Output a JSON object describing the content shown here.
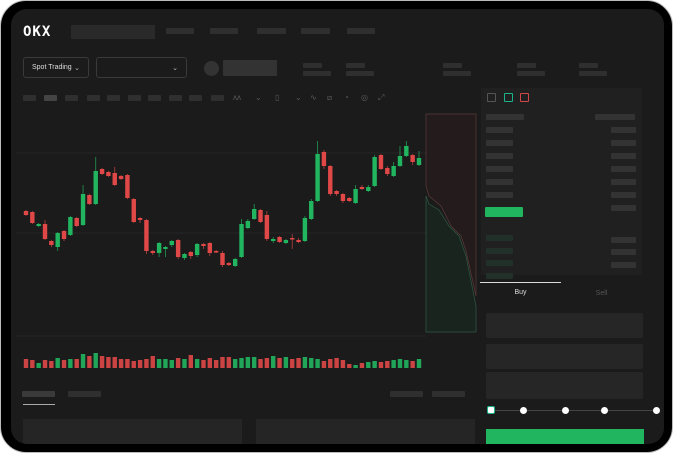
{
  "header": {
    "logo": "OKX"
  },
  "market": {
    "mode_label": "Spot Trading",
    "pair_select_value": ""
  },
  "colors": {
    "up": "#22b560",
    "down": "#e04848",
    "background": "#1b1b1b",
    "accent": "#22b560"
  },
  "order_form": {
    "tabs": [
      {
        "label": "Buy",
        "active": true
      },
      {
        "label": "Sell",
        "active": false
      }
    ],
    "slider_percent": 0
  },
  "chart_data": {
    "type": "candlestick",
    "title": "",
    "xlabel": "",
    "ylabel": "",
    "grid": true,
    "candles": [
      [
        98,
        94,
        99,
        93
      ],
      [
        97,
        86,
        98,
        85
      ],
      [
        83,
        85,
        86,
        82
      ],
      [
        85,
        70,
        89,
        69
      ],
      [
        68,
        64,
        69,
        62
      ],
      [
        62,
        76,
        77,
        58
      ],
      [
        78,
        70,
        79,
        68
      ],
      [
        74,
        92,
        93,
        73
      ],
      [
        91,
        83,
        92,
        82
      ],
      [
        84,
        115,
        124,
        83
      ],
      [
        114,
        105,
        115,
        104
      ],
      [
        105,
        138,
        152,
        104
      ],
      [
        140,
        135,
        141,
        134
      ],
      [
        137,
        133,
        138,
        132
      ],
      [
        136,
        124,
        142,
        123
      ],
      [
        133,
        130,
        134,
        129
      ],
      [
        134,
        111,
        135,
        110
      ],
      [
        110,
        87,
        111,
        86
      ],
      [
        91,
        89,
        92,
        86
      ],
      [
        89,
        58,
        90,
        55
      ],
      [
        58,
        56,
        59,
        54
      ],
      [
        56,
        66,
        67,
        52
      ],
      [
        60,
        62,
        63,
        52
      ],
      [
        64,
        68,
        69,
        62
      ],
      [
        69,
        52,
        70,
        50
      ],
      [
        51,
        55,
        56,
        49
      ],
      [
        57,
        53,
        58,
        50
      ],
      [
        54,
        65,
        66,
        52
      ],
      [
        65,
        63,
        66,
        60
      ],
      [
        66,
        56,
        67,
        53
      ],
      [
        58,
        57,
        59,
        56
      ],
      [
        56,
        44,
        58,
        42
      ],
      [
        46,
        44,
        47,
        43
      ],
      [
        43,
        50,
        51,
        42
      ],
      [
        52,
        85,
        90,
        51
      ],
      [
        81,
        88,
        90,
        80
      ],
      [
        90,
        100,
        105,
        89
      ],
      [
        99,
        87,
        100,
        86
      ],
      [
        94,
        70,
        98,
        68
      ],
      [
        68,
        70,
        72,
        66
      ],
      [
        72,
        67,
        73,
        66
      ],
      [
        66,
        69,
        70,
        65
      ],
      [
        71,
        70,
        75,
        60
      ],
      [
        69,
        67,
        71,
        66
      ],
      [
        68,
        91,
        93,
        67
      ],
      [
        90,
        108,
        110,
        89
      ],
      [
        108,
        155,
        168,
        107
      ],
      [
        157,
        143,
        159,
        140
      ],
      [
        143,
        115,
        144,
        113
      ],
      [
        118,
        115,
        119,
        113
      ],
      [
        115,
        108,
        116,
        106
      ],
      [
        111,
        108,
        112,
        107
      ],
      [
        106,
        120,
        124,
        105
      ],
      [
        122,
        120,
        124,
        119
      ],
      [
        118,
        122,
        124,
        117
      ],
      [
        123,
        152,
        154,
        122
      ],
      [
        154,
        140,
        155,
        139
      ],
      [
        141,
        135,
        143,
        133
      ],
      [
        133,
        143,
        147,
        132
      ],
      [
        143,
        153,
        163,
        142
      ],
      [
        153,
        163,
        168,
        152
      ],
      [
        154,
        147,
        155,
        144
      ],
      [
        144,
        151,
        158,
        143
      ]
    ],
    "volume": [
      9,
      8,
      5,
      8,
      7,
      10,
      8,
      9,
      9,
      14,
      12,
      15,
      12,
      11,
      11,
      9,
      9,
      7,
      8,
      9,
      12,
      9,
      9,
      8,
      10,
      9,
      13,
      9,
      8,
      10,
      8,
      11,
      11,
      9,
      10,
      11,
      11,
      9,
      10,
      12,
      10,
      11,
      9,
      10,
      11,
      10,
      9,
      7,
      9,
      10,
      8,
      4,
      3,
      5,
      6,
      7,
      6,
      7,
      8,
      9,
      8,
      7,
      9
    ]
  }
}
